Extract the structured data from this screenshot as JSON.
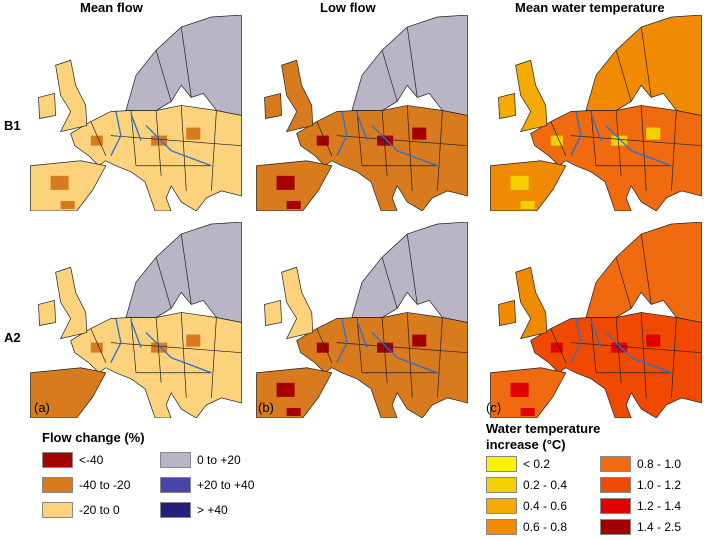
{
  "columns": [
    "Mean flow",
    "Low flow",
    "Mean water temperature"
  ],
  "rows": [
    "B1",
    "A2"
  ],
  "panel_labels": [
    "(a)",
    "(b)",
    "(c)"
  ],
  "flow_legend": {
    "title": "Flow change (%)",
    "items": [
      {
        "label": "<-40",
        "color": "#a50000"
      },
      {
        "label": "-40 to -20",
        "color": "#d87a1e"
      },
      {
        "label": "-20 to 0",
        "color": "#fdd27c"
      },
      {
        "label": "0 to +20",
        "color": "#b9b4c6"
      },
      {
        "label": "+20 to +40",
        "color": "#4646aa"
      },
      {
        "label": "> +40",
        "color": "#22207a"
      }
    ]
  },
  "temp_legend": {
    "title_line1": "Water temperature",
    "title_line2": "increase (°C)",
    "items": [
      {
        "label": "< 0.2",
        "color": "#f8f400"
      },
      {
        "label": "0.2 - 0.4",
        "color": "#f4d000"
      },
      {
        "label": "0.4 - 0.6",
        "color": "#f4aa00"
      },
      {
        "label": "0.6 - 0.8",
        "color": "#f08a00"
      },
      {
        "label": "0.8 - 1.0",
        "color": "#f06a10"
      },
      {
        "label": "1.0 - 1.2",
        "color": "#f04a00"
      },
      {
        "label": "1.2 - 1.4",
        "color": "#e00000"
      },
      {
        "label": "1.4 - 2.5",
        "color": "#a00000"
      }
    ]
  },
  "maps": [
    {
      "row": 0,
      "col": 0,
      "north": "#b9b4c6",
      "main": "#fdd27c",
      "iberia": "#fdd27c",
      "uk": "#fdd27c",
      "patch": "#d87a1e"
    },
    {
      "row": 0,
      "col": 1,
      "north": "#b9b4c6",
      "main": "#d87a1e",
      "iberia": "#d87a1e",
      "uk": "#d87a1e",
      "patch": "#a50000"
    },
    {
      "row": 0,
      "col": 2,
      "north": "#f08a00",
      "main": "#f06a10",
      "iberia": "#f08a00",
      "uk": "#f4aa00",
      "patch": "#f4d000"
    },
    {
      "row": 1,
      "col": 0,
      "north": "#b9b4c6",
      "main": "#fdd27c",
      "iberia": "#d87a1e",
      "uk": "#fdd27c",
      "patch": "#d87a1e"
    },
    {
      "row": 1,
      "col": 1,
      "north": "#b9b4c6",
      "main": "#d87a1e",
      "iberia": "#d87a1e",
      "uk": "#fdd27c",
      "patch": "#a50000"
    },
    {
      "row": 1,
      "col": 2,
      "north": "#f06a10",
      "main": "#f04a00",
      "iberia": "#f06a10",
      "uk": "#f08a00",
      "patch": "#e00000"
    }
  ]
}
